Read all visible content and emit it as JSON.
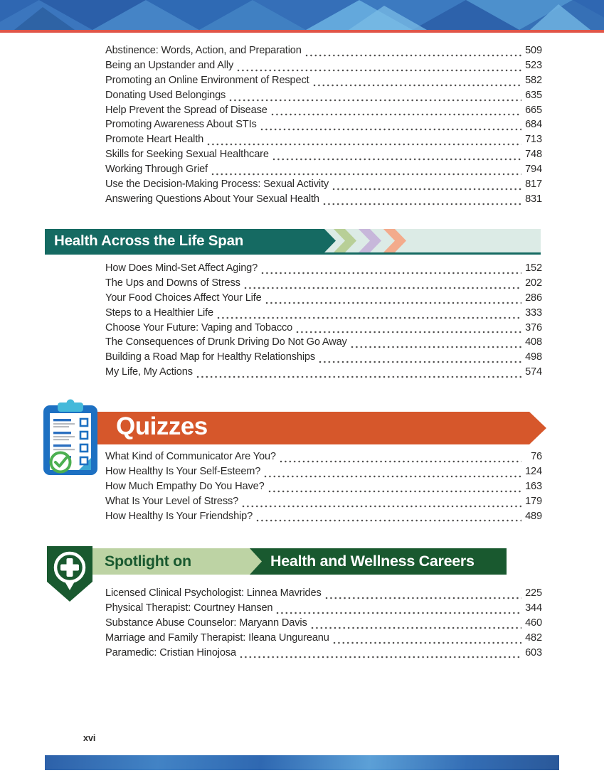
{
  "page": {
    "folio": "xvi"
  },
  "colors": {
    "text": "#2b2a29",
    "header_blue": "#2f67b2",
    "header_red": "#df5549",
    "teal": "#156a62",
    "teal_bg": "#dcebe6",
    "orange": "#d6572b",
    "dark_green": "#19592f",
    "sage": "#bdd3a4",
    "clipboard_blue": "#1d70c2",
    "clipboard_cyan": "#44b9da",
    "check_green": "#4caf50"
  },
  "sections": {
    "intro": {
      "entries": [
        {
          "title": "Abstinence: Words, Action, and Preparation",
          "page": "509"
        },
        {
          "title": "Being an Upstander and Ally",
          "page": "523"
        },
        {
          "title": "Promoting an Online Environment of Respect",
          "page": "582"
        },
        {
          "title": "Donating Used Belongings",
          "page": "635"
        },
        {
          "title": "Help Prevent the Spread of Disease",
          "page": "665"
        },
        {
          "title": "Promoting Awareness About STIs",
          "page": "684"
        },
        {
          "title": "Promote Heart Health",
          "page": "713"
        },
        {
          "title": "Skills for Seeking Sexual Healthcare",
          "page": "748"
        },
        {
          "title": "Working Through Grief",
          "page": "794"
        },
        {
          "title": "Use the Decision-Making Process: Sexual Activity",
          "page": "817"
        },
        {
          "title": "Answering Questions About Your Sexual Health",
          "page": "831"
        }
      ]
    },
    "lifespan": {
      "title": "Health Across the Life Span",
      "chevron_colors": [
        "#b8cf97",
        "#c7b7da",
        "#f3ab8c"
      ],
      "entries": [
        {
          "title": "How Does Mind-Set Affect Aging?",
          "page": "152"
        },
        {
          "title": "The Ups and Downs of Stress",
          "page": "202"
        },
        {
          "title": "Your Food Choices Affect Your Life",
          "page": "286"
        },
        {
          "title": "Steps to a Healthier Life",
          "page": "333"
        },
        {
          "title": "Choose Your Future: Vaping and Tobacco",
          "page": "376"
        },
        {
          "title": "The Consequences of Drunk Driving Do Not Go Away",
          "page": "408"
        },
        {
          "title": "Building a Road Map for Healthy Relationships",
          "page": "498"
        },
        {
          "title": "My Life, My Actions",
          "page": "574"
        }
      ]
    },
    "quizzes": {
      "title": "Quizzes",
      "icon": "clipboard-checklist-icon",
      "entries": [
        {
          "title": "What Kind of Communicator Are You?",
          "page": "76"
        },
        {
          "title": "How Healthy Is Your Self-Esteem?",
          "page": "124"
        },
        {
          "title": "How Much Empathy Do You Have?",
          "page": "163"
        },
        {
          "title": "What Is Your Level of Stress?",
          "page": "179"
        },
        {
          "title": "How Healthy Is Your Friendship?",
          "page": "489"
        }
      ]
    },
    "spotlight": {
      "title_light": "Spotlight on",
      "title_dark": "Health and Wellness Careers",
      "icon": "medical-cross-badge-icon",
      "entries": [
        {
          "title": "Licensed Clinical Psychologist: Linnea Mavrides",
          "page": "225"
        },
        {
          "title": "Physical Therapist: Courtney Hansen",
          "page": "344"
        },
        {
          "title": "Substance Abuse Counselor: Maryann Davis",
          "page": "460"
        },
        {
          "title": "Marriage and Family Therapist: Ileana Ungureanu",
          "page": "482"
        },
        {
          "title": "Paramedic: Cristian Hinojosa",
          "page": "603"
        }
      ]
    }
  }
}
